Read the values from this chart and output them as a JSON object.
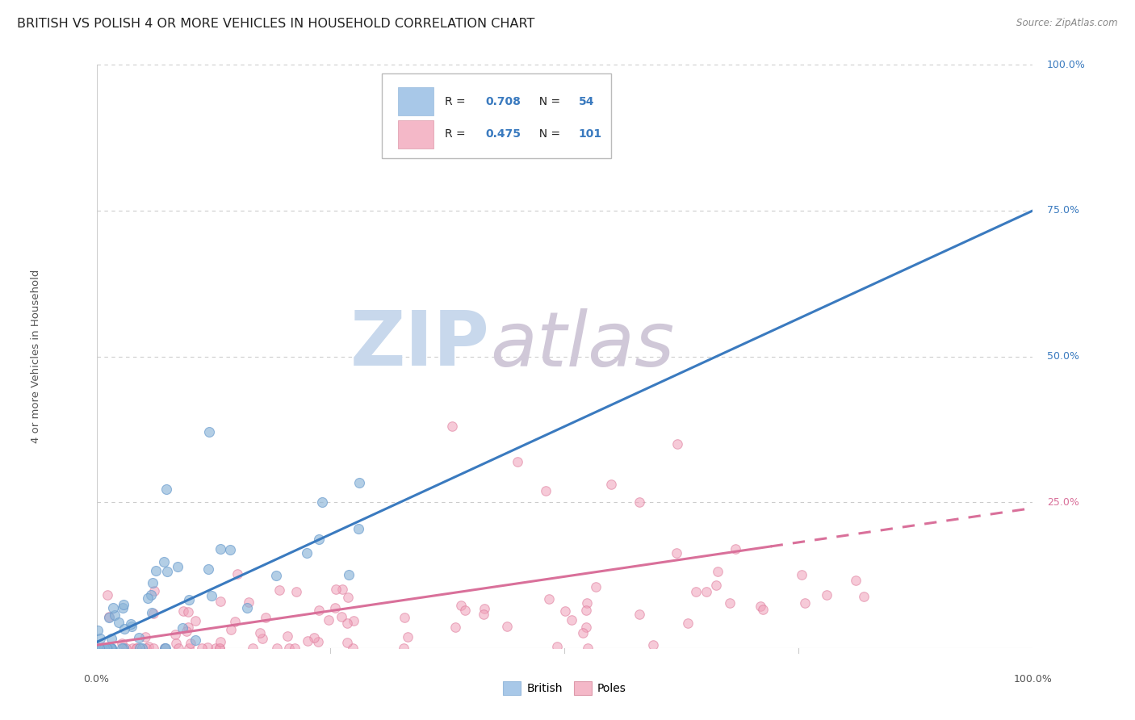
{
  "title": "BRITISH VS POLISH 4 OR MORE VEHICLES IN HOUSEHOLD CORRELATION CHART",
  "source": "Source: ZipAtlas.com",
  "ylabel": "4 or more Vehicles in Household",
  "british_R": 0.708,
  "british_N": 54,
  "poles_R": 0.475,
  "poles_N": 101,
  "british_color": "#8ab4d8",
  "british_edge": "#6699cc",
  "poles_color": "#f0a0b8",
  "poles_edge": "#dd7799",
  "trendline_british_color": "#3a7abf",
  "trendline_poles_color": "#d9709a",
  "watermark_zip_color": "#c8d8ec",
  "watermark_atlas_color": "#d0c8d8",
  "background_color": "#ffffff",
  "grid_color": "#cccccc",
  "title_fontsize": 11.5,
  "legend_r_color": "#222222",
  "legend_n_color": "#3a7abf",
  "ytick_color_0": "#888888",
  "ytick_color_25": "#d9709a",
  "ytick_color_50": "#3a7abf",
  "ytick_color_75": "#3a7abf",
  "ytick_color_100": "#3a7abf"
}
